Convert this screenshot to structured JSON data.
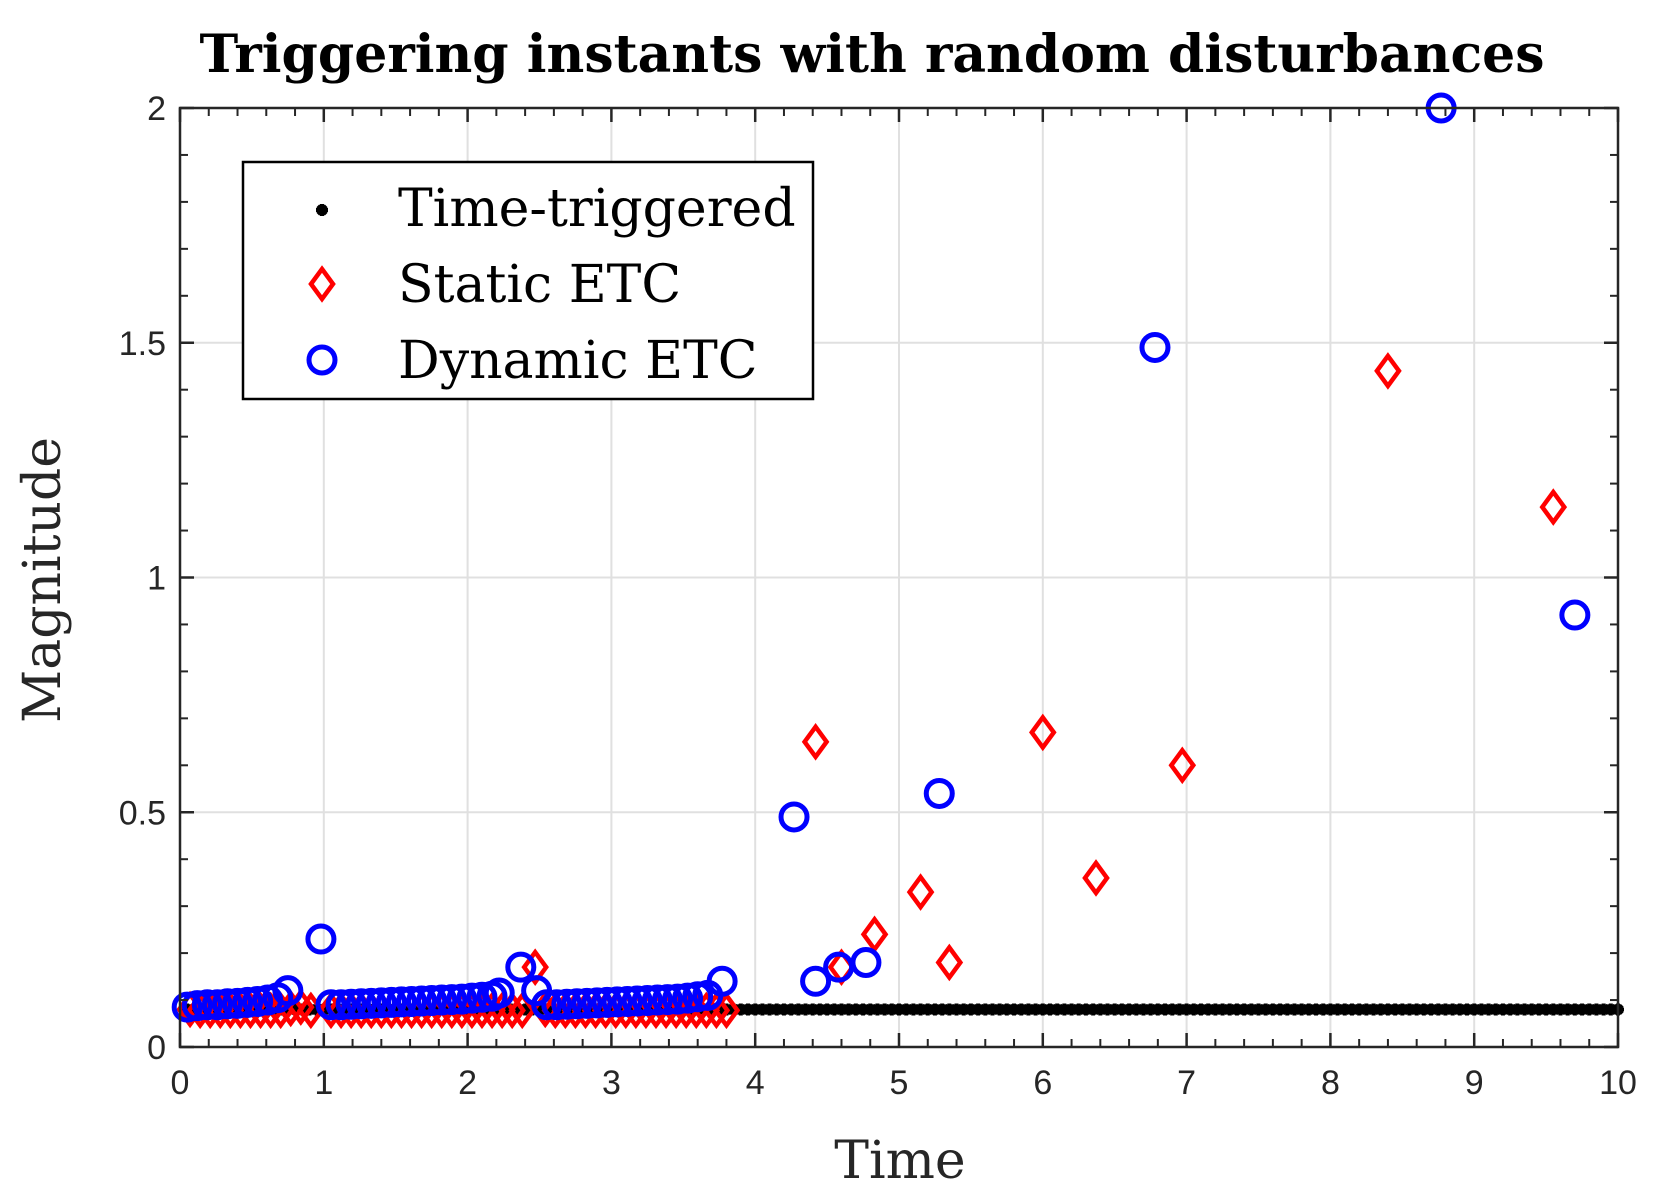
{
  "chart_data": {
    "type": "scatter",
    "title": "Triggering instants with random disturbances",
    "xlabel": "Time",
    "ylabel": "Magnitude",
    "xlim": [
      0,
      10
    ],
    "ylim": [
      0,
      2
    ],
    "xticks": [
      "0",
      "1",
      "2",
      "3",
      "4",
      "5",
      "6",
      "7",
      "8",
      "9",
      "10"
    ],
    "yticks": [
      "0",
      "0.5",
      "1",
      "1.5",
      "2"
    ],
    "grid": true,
    "legend_position": "top-left",
    "colors": {
      "time_triggered": "#000000",
      "static": "#ff0000",
      "dynamic": "#0000ff",
      "grid": "#e0e0e0",
      "axis": "#262626"
    },
    "series": [
      {
        "name": "Time-triggered",
        "marker": "asterisk",
        "x_start": 0.05,
        "x_end": 10.0,
        "x_step": 0.05,
        "y_constant": 0.08
      },
      {
        "name": "Static ETC",
        "marker": "diamond",
        "points": [
          [
            0.07,
            0.08
          ],
          [
            0.14,
            0.078
          ],
          [
            0.21,
            0.078
          ],
          [
            0.28,
            0.078
          ],
          [
            0.35,
            0.078
          ],
          [
            0.42,
            0.078
          ],
          [
            0.49,
            0.078
          ],
          [
            0.56,
            0.078
          ],
          [
            0.63,
            0.078
          ],
          [
            0.7,
            0.078
          ],
          [
            0.77,
            0.082
          ],
          [
            0.84,
            0.085
          ],
          [
            0.91,
            0.078
          ],
          [
            1.05,
            0.078
          ],
          [
            1.12,
            0.078
          ],
          [
            1.19,
            0.078
          ],
          [
            1.26,
            0.078
          ],
          [
            1.33,
            0.078
          ],
          [
            1.4,
            0.078
          ],
          [
            1.47,
            0.078
          ],
          [
            1.54,
            0.078
          ],
          [
            1.61,
            0.078
          ],
          [
            1.68,
            0.078
          ],
          [
            1.75,
            0.078
          ],
          [
            1.82,
            0.078
          ],
          [
            1.89,
            0.078
          ],
          [
            1.96,
            0.078
          ],
          [
            2.03,
            0.078
          ],
          [
            2.1,
            0.078
          ],
          [
            2.17,
            0.078
          ],
          [
            2.24,
            0.078
          ],
          [
            2.31,
            0.078
          ],
          [
            2.38,
            0.078
          ],
          [
            2.47,
            0.17
          ],
          [
            2.54,
            0.08
          ],
          [
            2.61,
            0.078
          ],
          [
            2.68,
            0.078
          ],
          [
            2.75,
            0.078
          ],
          [
            2.82,
            0.078
          ],
          [
            2.89,
            0.078
          ],
          [
            2.96,
            0.078
          ],
          [
            3.03,
            0.078
          ],
          [
            3.1,
            0.078
          ],
          [
            3.17,
            0.078
          ],
          [
            3.24,
            0.078
          ],
          [
            3.31,
            0.078
          ],
          [
            3.38,
            0.078
          ],
          [
            3.45,
            0.078
          ],
          [
            3.52,
            0.078
          ],
          [
            3.59,
            0.078
          ],
          [
            3.66,
            0.078
          ],
          [
            3.73,
            0.078
          ],
          [
            3.8,
            0.078
          ],
          [
            4.42,
            0.65
          ],
          [
            4.6,
            0.17
          ],
          [
            4.83,
            0.24
          ],
          [
            5.15,
            0.33
          ],
          [
            5.35,
            0.18
          ],
          [
            6.0,
            0.67
          ],
          [
            6.37,
            0.36
          ],
          [
            6.97,
            0.6
          ],
          [
            8.4,
            1.44
          ],
          [
            9.55,
            1.15
          ]
        ]
      },
      {
        "name": "Dynamic ETC",
        "marker": "circle",
        "points": [
          [
            0.05,
            0.085
          ],
          [
            0.12,
            0.088
          ],
          [
            0.19,
            0.09
          ],
          [
            0.26,
            0.09
          ],
          [
            0.33,
            0.092
          ],
          [
            0.4,
            0.093
          ],
          [
            0.47,
            0.095
          ],
          [
            0.54,
            0.097
          ],
          [
            0.61,
            0.1
          ],
          [
            0.68,
            0.105
          ],
          [
            0.75,
            0.12
          ],
          [
            0.98,
            0.23
          ],
          [
            1.05,
            0.09
          ],
          [
            1.12,
            0.09
          ],
          [
            1.19,
            0.091
          ],
          [
            1.26,
            0.092
          ],
          [
            1.33,
            0.093
          ],
          [
            1.4,
            0.094
          ],
          [
            1.47,
            0.095
          ],
          [
            1.54,
            0.096
          ],
          [
            1.61,
            0.097
          ],
          [
            1.68,
            0.098
          ],
          [
            1.75,
            0.099
          ],
          [
            1.82,
            0.1
          ],
          [
            1.89,
            0.101
          ],
          [
            1.96,
            0.102
          ],
          [
            2.03,
            0.104
          ],
          [
            2.1,
            0.106
          ],
          [
            2.17,
            0.108
          ],
          [
            2.22,
            0.115
          ],
          [
            2.37,
            0.17
          ],
          [
            2.48,
            0.12
          ],
          [
            2.55,
            0.09
          ],
          [
            2.62,
            0.09
          ],
          [
            2.69,
            0.091
          ],
          [
            2.76,
            0.092
          ],
          [
            2.83,
            0.093
          ],
          [
            2.9,
            0.094
          ],
          [
            2.97,
            0.095
          ],
          [
            3.04,
            0.096
          ],
          [
            3.11,
            0.097
          ],
          [
            3.18,
            0.098
          ],
          [
            3.25,
            0.099
          ],
          [
            3.32,
            0.1
          ],
          [
            3.39,
            0.101
          ],
          [
            3.46,
            0.102
          ],
          [
            3.53,
            0.104
          ],
          [
            3.6,
            0.107
          ],
          [
            3.67,
            0.11
          ],
          [
            3.77,
            0.14
          ],
          [
            4.27,
            0.49
          ],
          [
            4.42,
            0.14
          ],
          [
            4.58,
            0.17
          ],
          [
            4.77,
            0.18
          ],
          [
            5.28,
            0.54
          ],
          [
            6.78,
            1.49
          ],
          [
            8.77,
            2.0
          ],
          [
            9.7,
            0.92
          ]
        ]
      }
    ]
  }
}
